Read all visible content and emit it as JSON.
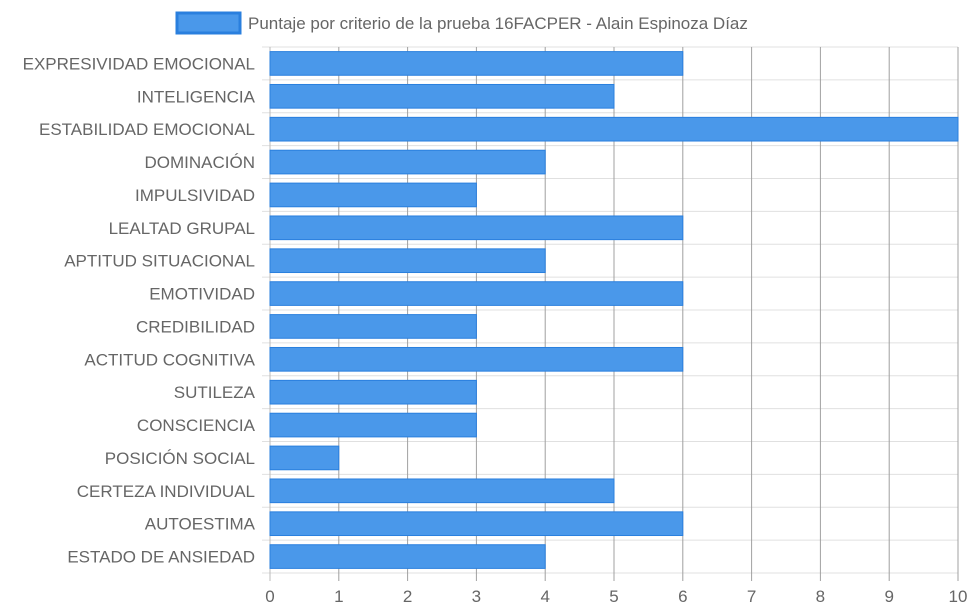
{
  "chart_data": {
    "type": "bar",
    "orientation": "horizontal",
    "legend": {
      "label": "Puntaje por criterio de la prueba 16FACPER - Alain Espinoza Díaz",
      "position": "top"
    },
    "categories": [
      "EXPRESIVIDAD EMOCIONAL",
      "INTELIGENCIA",
      "ESTABILIDAD EMOCIONAL",
      "DOMINACIÓN",
      "IMPULSIVIDAD",
      "LEALTAD GRUPAL",
      "APTITUD SITUACIONAL",
      "EMOTIVIDAD",
      "CREDIBILIDAD",
      "ACTITUD COGNITIVA",
      "SUTILEZA",
      "CONSCIENCIA",
      "POSICIÓN SOCIAL",
      "CERTEZA INDIVIDUAL",
      "AUTOESTIMA",
      "ESTADO DE ANSIEDAD"
    ],
    "series": [
      {
        "name": "Puntaje por criterio de la prueba 16FACPER - Alain Espinoza Díaz",
        "values": [
          6,
          5,
          10,
          4,
          3,
          6,
          4,
          6,
          3,
          6,
          3,
          3,
          1,
          5,
          6,
          4
        ]
      }
    ],
    "xlim": [
      0,
      10
    ],
    "xticks": [
      0,
      1,
      2,
      3,
      4,
      5,
      6,
      7,
      8,
      9,
      10
    ],
    "grid": true,
    "colors": {
      "bar_fill": "#4a98ea",
      "bar_stroke": "#2a7fde",
      "grid": "#e0e0e0",
      "vertical_grid": "#a0a0a0",
      "text": "#666666"
    }
  }
}
